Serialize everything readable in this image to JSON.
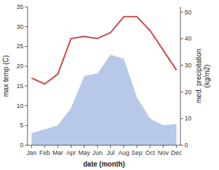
{
  "chart_data": {
    "type": "line",
    "xlabel": "date (month)",
    "ylabel": "max temp (C)",
    "y2label": "med. precipitation\n(kg/m2)",
    "categories": [
      "Jan",
      "Feb",
      "Mar",
      "Apr",
      "May",
      "Jun",
      "Jul",
      "Aug",
      "Sep",
      "Oct",
      "Nov",
      "Dec"
    ],
    "series": [
      {
        "type": "area",
        "axis": "y2",
        "color": "#b8c8e8",
        "values": [
          4.5,
          6.0,
          7.5,
          14.0,
          26.0,
          27.0,
          34.0,
          32.5,
          18.0,
          10.0,
          7.5,
          8.0
        ]
      },
      {
        "type": "line",
        "color": "#cc4444",
        "values": [
          17.0,
          15.5,
          18.0,
          27.0,
          27.5,
          27.0,
          28.5,
          32.5,
          32.5,
          29.0,
          24.0,
          19.0
        ]
      }
    ],
    "ylim": [
      0,
      35
    ],
    "yticks": [
      0,
      5,
      10,
      15,
      20,
      25,
      30,
      35
    ],
    "y2lim": [
      0,
      52
    ],
    "y2ticks": [
      0,
      10,
      20,
      30,
      40,
      50
    ],
    "grid": false
  }
}
